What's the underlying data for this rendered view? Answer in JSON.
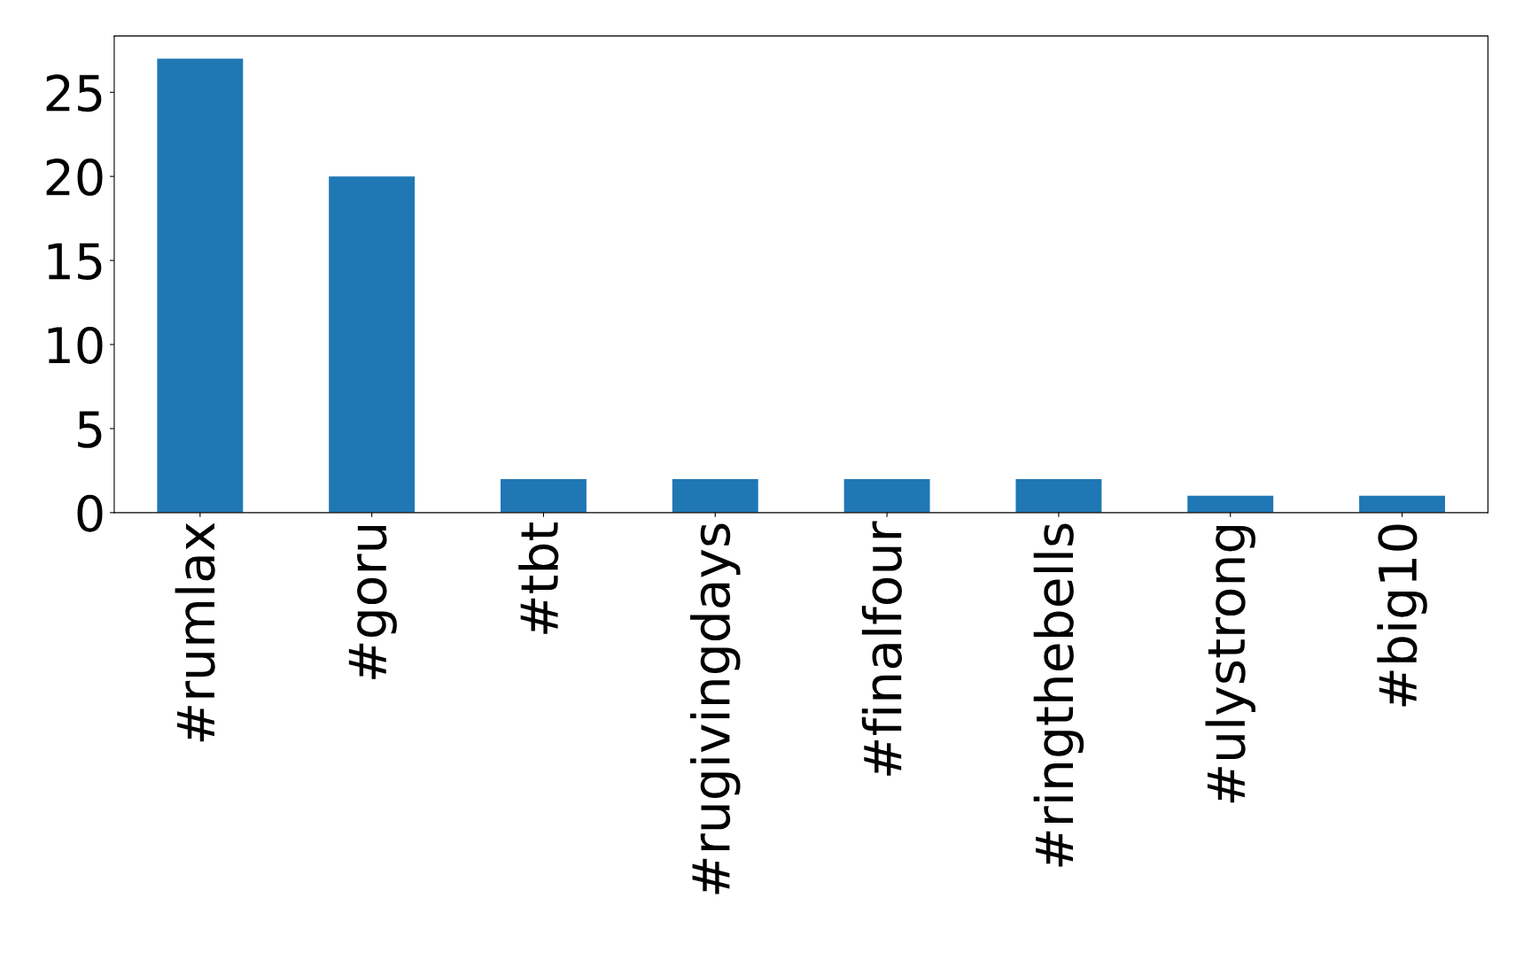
{
  "chart_data": {
    "type": "bar",
    "categories": [
      "#rumlax",
      "#goru",
      "#tbt",
      "#rugivingdays",
      "#finalfour",
      "#ringthebells",
      "#ulystrong",
      "#big10"
    ],
    "values": [
      27,
      20,
      2,
      2,
      2,
      2,
      1,
      1
    ],
    "color": "#1f77b4",
    "ylim": [
      0,
      28.35
    ],
    "yticks": [
      0,
      5,
      10,
      15,
      20,
      25
    ],
    "grid": false
  }
}
